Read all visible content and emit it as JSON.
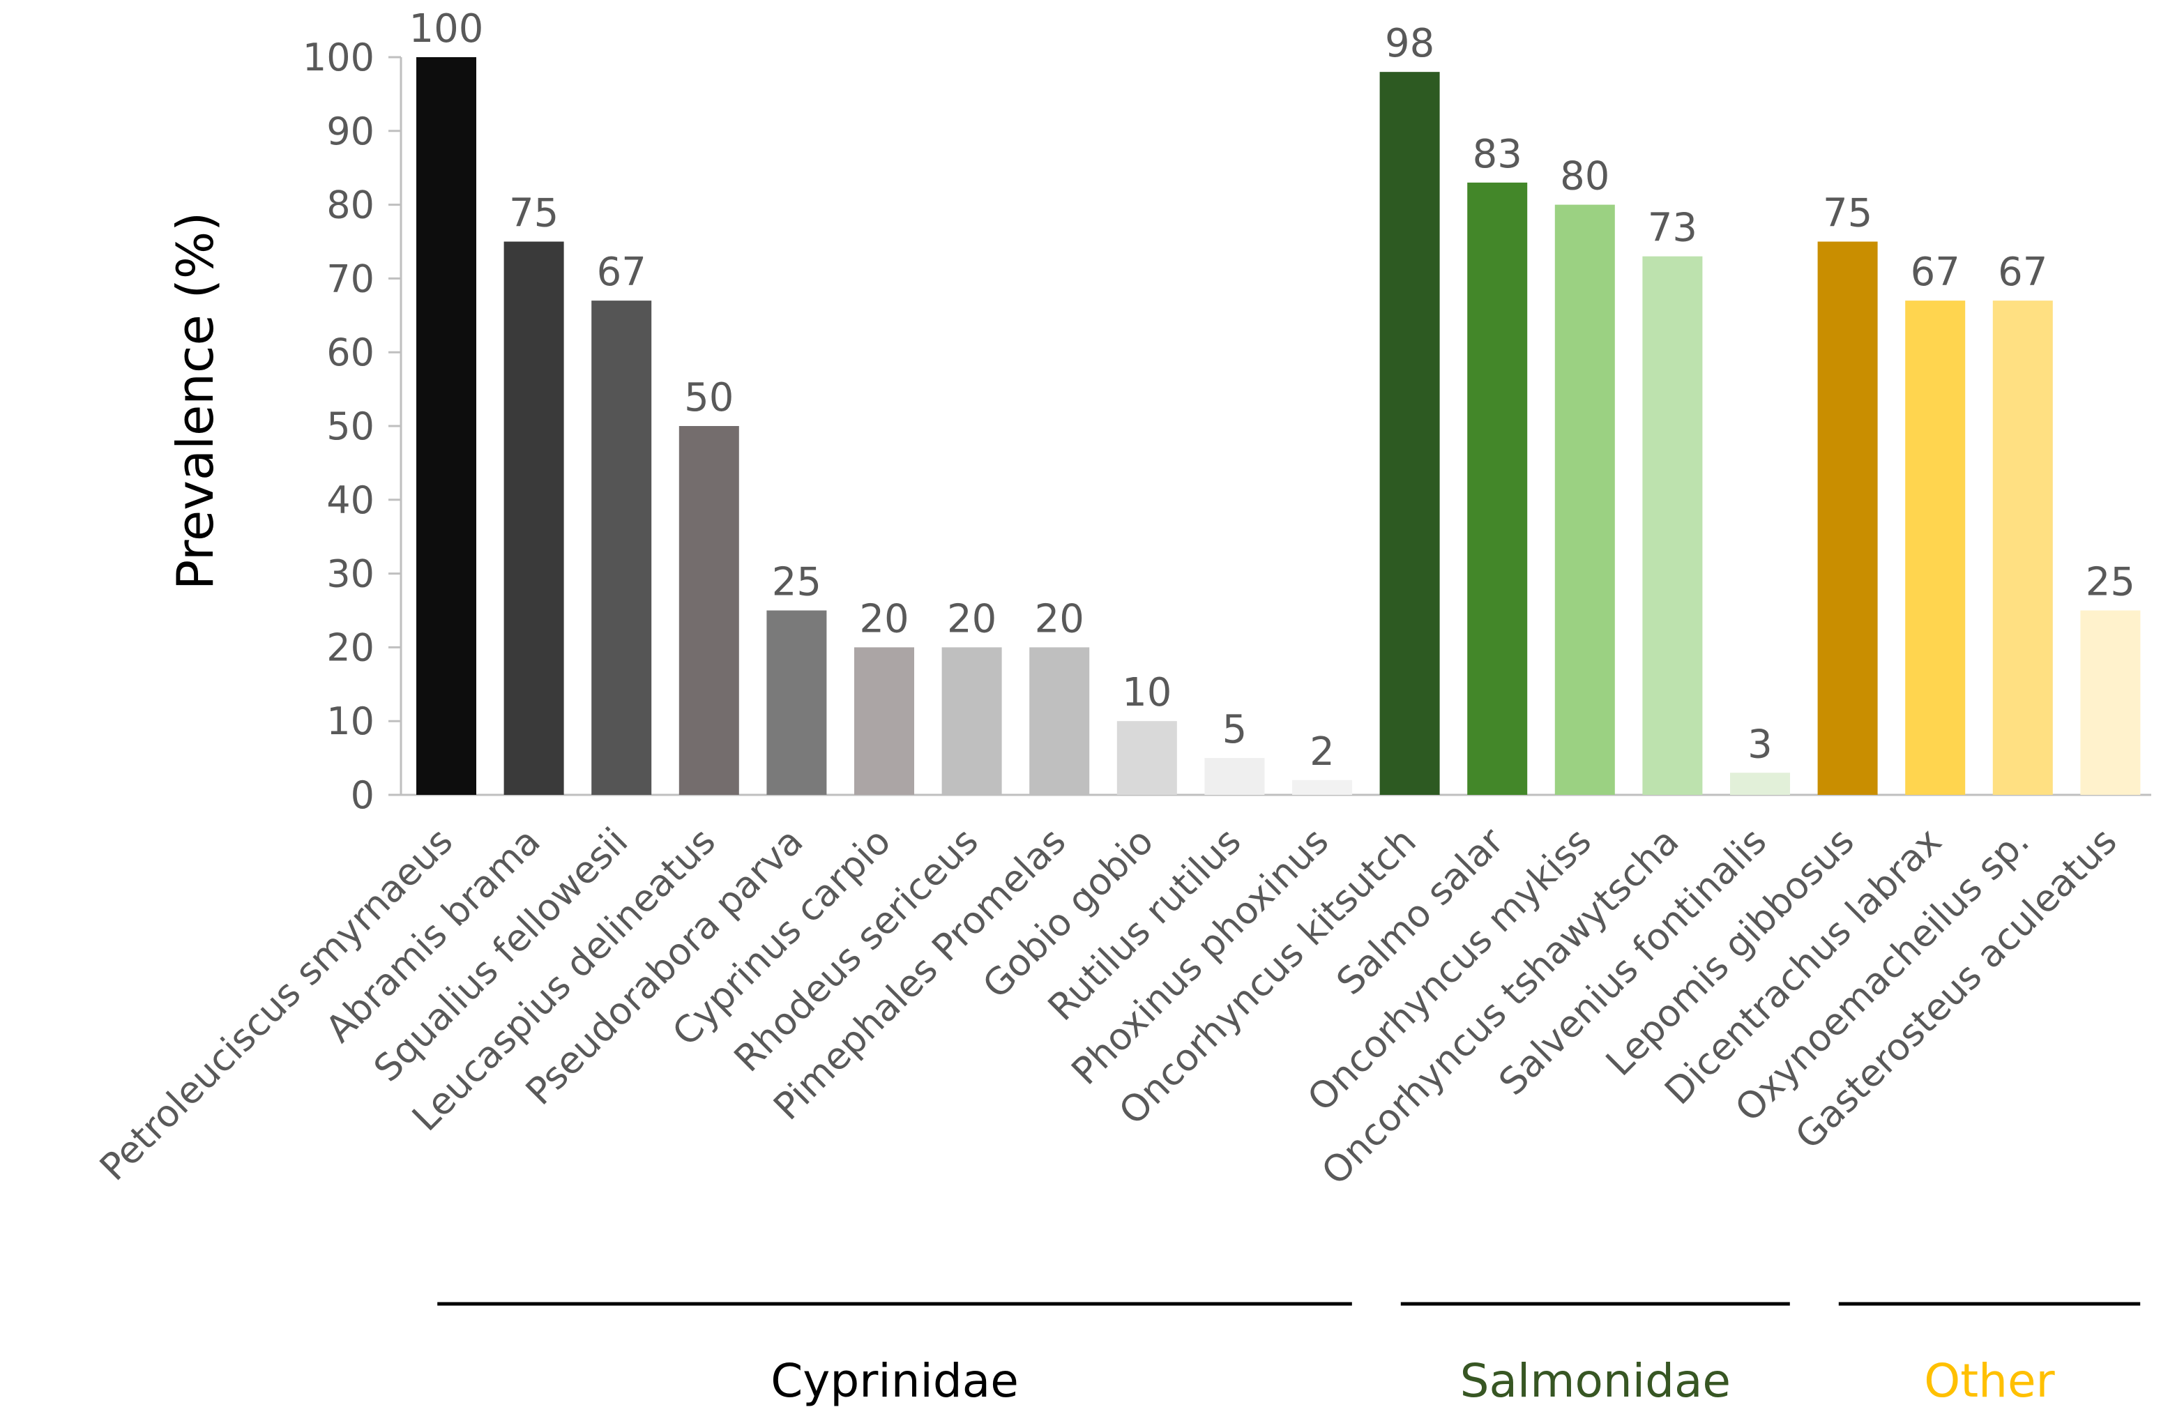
{
  "chart_data": {
    "type": "bar",
    "title": "",
    "xlabel": "",
    "ylabel": "Prevalence (%)",
    "ylim": [
      0,
      100
    ],
    "yticks": [
      "0",
      "10",
      "20",
      "30",
      "40",
      "50",
      "60",
      "70",
      "80",
      "90",
      "100"
    ],
    "grid": false,
    "categories": [
      "Petroleuciscus smyrnaeus",
      "Abramis brama",
      "Squalius fellowesii",
      "Leucaspius delineatus",
      "Pseudorabora parva",
      "Cyprinus carpio",
      "Rhodeus sericeus",
      "Pimephales Promelas",
      "Gobio gobio",
      "Rutilus rutilus",
      "Phoxinus phoxinus",
      "Oncorhyncus kitsutch",
      "Salmo salar",
      "Oncorhyncus mykiss",
      "Oncorhyncus tshawytscha",
      "Salvenius fontinalis",
      "Lepomis gibbosus",
      "Dicentrachus labrax",
      "Oxynoemacheilus sp.",
      "Gasterosteus aculeatus"
    ],
    "values": [
      100,
      75,
      67,
      50,
      25,
      20,
      20,
      20,
      10,
      5,
      2,
      98,
      83,
      80,
      73,
      3,
      75,
      67,
      67,
      25
    ],
    "bar_colors": [
      "#0d0d0d",
      "#3a3a3a",
      "#555555",
      "#746d6d",
      "#7a7a7a",
      "#aba5a5",
      "#bfbfbf",
      "#bfbfbf",
      "#d9d9d9",
      "#efefef",
      "#f2f2f2",
      "#2d5a22",
      "#438729",
      "#9bd182",
      "#bde2ae",
      "#e2f0d9",
      "#c98e00",
      "#ffd54f",
      "#ffe082",
      "#fff2cc"
    ],
    "groups": [
      {
        "name": "Cyprinidae",
        "color": "#000000",
        "first": 0,
        "last": 10
      },
      {
        "name": "Salmonidae",
        "color": "#375623",
        "first": 11,
        "last": 15
      },
      {
        "name": "Other",
        "color": "#ffc000",
        "first": 16,
        "last": 19
      }
    ]
  }
}
